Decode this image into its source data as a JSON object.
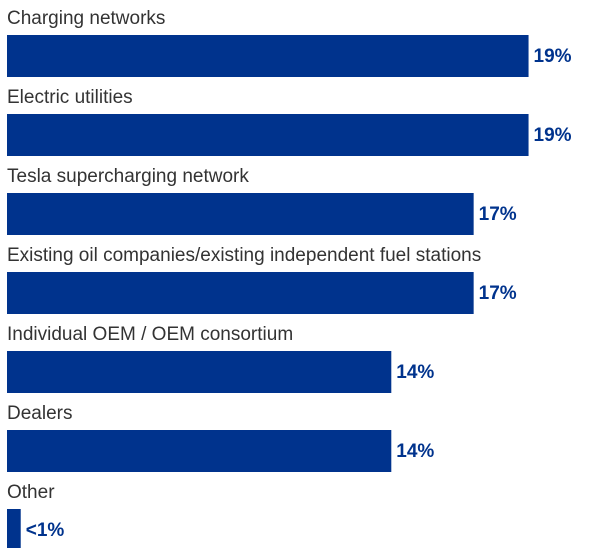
{
  "chart_data": {
    "type": "bar",
    "orientation": "horizontal",
    "color": "#00338d",
    "categories": [
      "Charging networks",
      "Electric utilities",
      "Tesla supercharging network",
      "Existing oil companies/existing independent fuel stations",
      "Individual OEM / OEM consortium",
      "Dealers",
      "Other"
    ],
    "values": [
      19,
      19,
      17,
      17,
      14,
      14,
      0.5
    ],
    "value_labels": [
      "19%",
      "19%",
      "17%",
      "17%",
      "14%",
      "14%",
      "<1%"
    ]
  }
}
